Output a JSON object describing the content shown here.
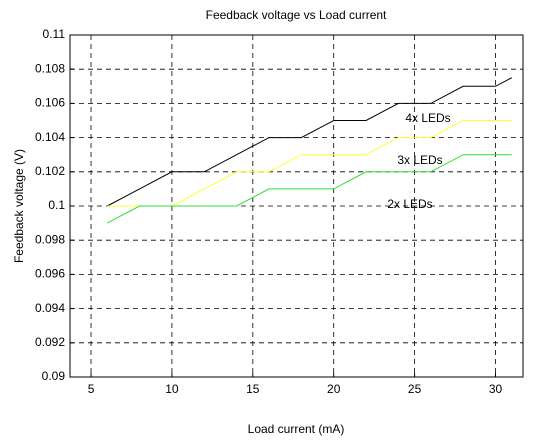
{
  "chart_data": {
    "type": "line",
    "title": "Feedback voltage  vs  Load current",
    "x_label": "Load current  (mA)",
    "y_label": "Feedback voltage  (V)",
    "x": [
      6,
      8,
      10,
      12,
      14,
      16,
      18,
      20,
      22,
      24,
      26,
      28,
      30,
      31
    ],
    "series": [
      {
        "name": "4x LEDs",
        "color": "#000000",
        "values": [
          0.1,
          0.101,
          0.102,
          0.102,
          0.103,
          0.104,
          0.104,
          0.105,
          0.105,
          0.106,
          0.106,
          0.107,
          0.107,
          0.1075
        ]
      },
      {
        "name": "3x LEDs",
        "color": "#ffff33",
        "values": [
          0.1,
          0.1,
          0.1,
          0.101,
          0.102,
          0.102,
          0.103,
          0.103,
          0.103,
          0.104,
          0.104,
          0.105,
          0.105,
          0.105
        ]
      },
      {
        "name": "2x LEDs",
        "color": "#33dd33",
        "values": [
          0.099,
          0.1,
          0.1,
          0.1,
          0.1,
          0.101,
          0.101,
          0.101,
          0.102,
          0.102,
          0.102,
          0.103,
          0.103,
          0.103
        ]
      }
    ],
    "xlim": [
      3.7,
      31.7
    ],
    "xticks": [
      5,
      10,
      15,
      20,
      25,
      30
    ],
    "ylim": [
      0.09,
      0.11
    ],
    "yticks": [
      0.09,
      0.092,
      0.094,
      0.096,
      0.098,
      0.1,
      0.102,
      0.104,
      0.106,
      0.108,
      0.11
    ],
    "grid": true
  }
}
